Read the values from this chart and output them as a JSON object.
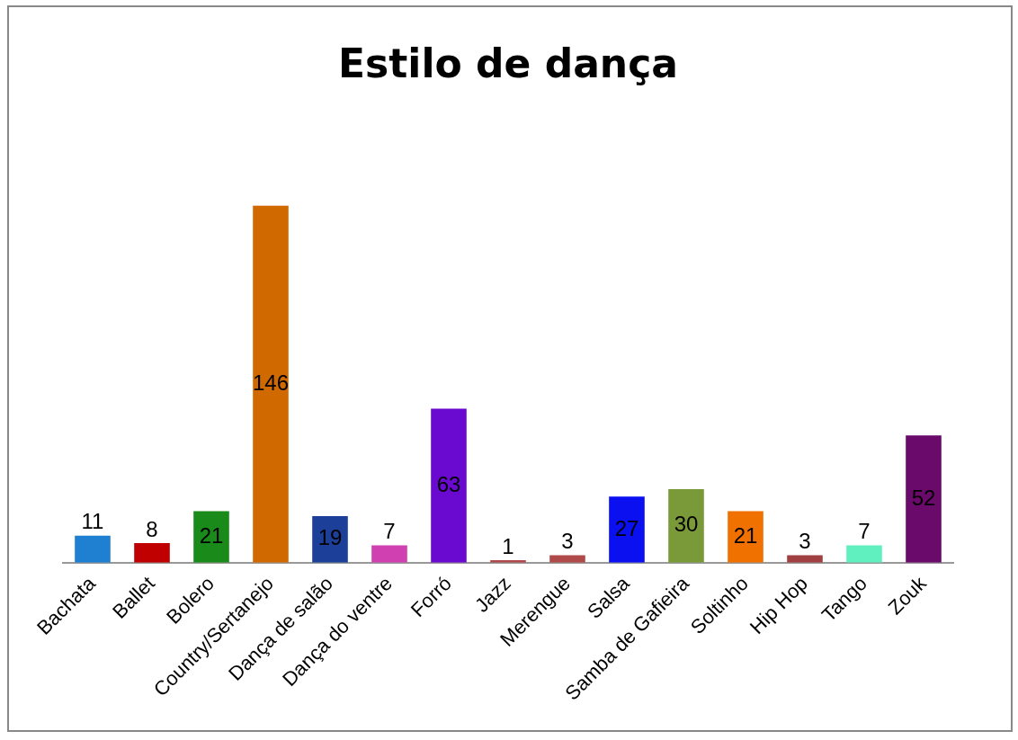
{
  "chart_data": {
    "type": "bar",
    "title": "Estilo de dança",
    "categories": [
      "Bachata",
      "Ballet",
      "Bolero",
      "Country/Sertanejo",
      "Dança de salão",
      "Dança do ventre",
      "Forró",
      "Jazz",
      "Merengue",
      "Salsa",
      "Samba de Gafieira",
      "Soltinho",
      "Hip Hop",
      "Tango",
      "Zouk"
    ],
    "values": [
      11,
      8,
      21,
      146,
      19,
      7,
      63,
      1,
      3,
      27,
      30,
      21,
      3,
      7,
      52
    ],
    "colors": [
      "#1f7fd0",
      "#c00000",
      "#1a8a1a",
      "#d06a00",
      "#1c3f9a",
      "#d040b0",
      "#6a0ad0",
      "#b04a4a",
      "#b04a4a",
      "#0a10f0",
      "#7a9a3a",
      "#f07000",
      "#a04040",
      "#60f0c0",
      "#6a0a6a"
    ],
    "data_labels": true
  }
}
